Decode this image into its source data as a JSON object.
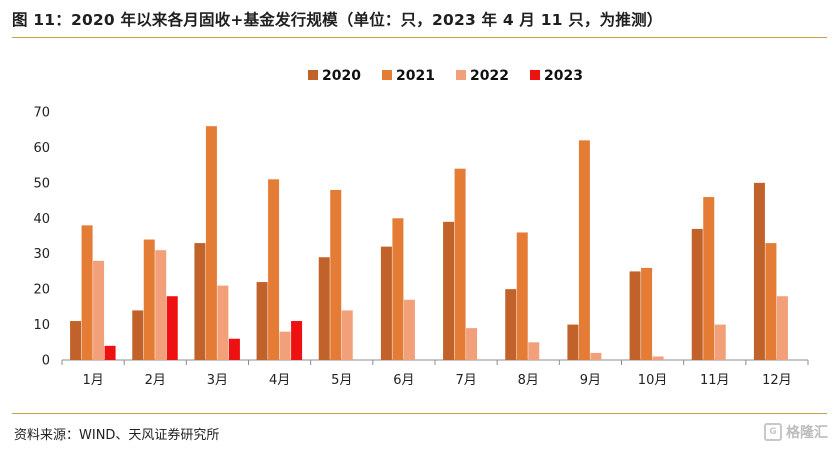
{
  "title": "图 11：2020 年以来各月固收+基金发行规模（单位：只，2023 年 4 月 11 只，为推测）",
  "source": "资料来源：WIND、天风证券研究所",
  "watermark": "格隆汇",
  "chart_data": {
    "type": "bar",
    "categories": [
      "1月",
      "2月",
      "3月",
      "4月",
      "5月",
      "6月",
      "7月",
      "8月",
      "9月",
      "10月",
      "11月",
      "12月"
    ],
    "series": [
      {
        "name": "2020",
        "color": "#c0622a",
        "values": [
          11,
          14,
          33,
          22,
          29,
          32,
          39,
          20,
          10,
          25,
          37,
          50
        ]
      },
      {
        "name": "2021",
        "color": "#e57c35",
        "values": [
          38,
          34,
          66,
          51,
          48,
          40,
          54,
          36,
          62,
          26,
          46,
          33
        ]
      },
      {
        "name": "2022",
        "color": "#f2a07a",
        "values": [
          28,
          31,
          21,
          8,
          14,
          17,
          9,
          5,
          2,
          1,
          10,
          18
        ]
      },
      {
        "name": "2023",
        "color": "#ee1111",
        "values": [
          4,
          18,
          6,
          11,
          null,
          null,
          null,
          null,
          null,
          null,
          null,
          null
        ]
      }
    ],
    "ylim": [
      0,
      70
    ],
    "yticks": [
      0,
      10,
      20,
      30,
      40,
      50,
      60,
      70
    ],
    "grid": false,
    "legend": "top-center"
  }
}
